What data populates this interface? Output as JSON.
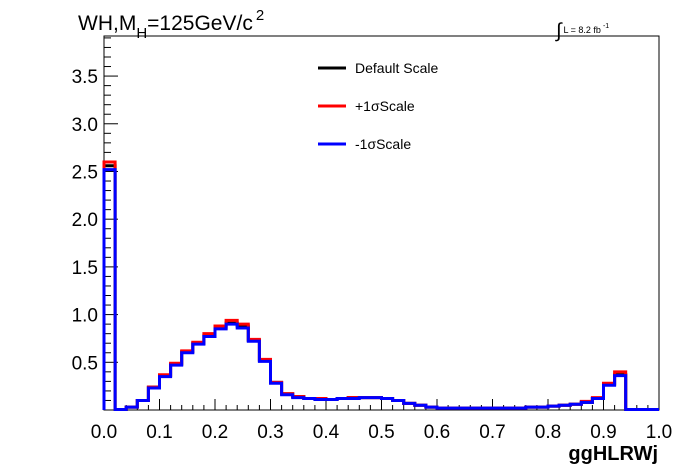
{
  "chart_data": {
    "type": "line",
    "style": "step-histogram",
    "title_main": "WH,M",
    "title_sub": "H",
    "title_rest": "=125GeV/c",
    "title_sup": "2",
    "lumi_prefix": "L = 8.2 fb",
    "lumi_sup": "-1",
    "xlabel": "ggHLRWj",
    "ylabel": "",
    "xlim": [
      0.0,
      1.0
    ],
    "ylim": [
      0.0,
      3.92
    ],
    "xticks": [
      "0.0",
      "0.1",
      "0.2",
      "0.3",
      "0.4",
      "0.5",
      "0.6",
      "0.7",
      "0.8",
      "0.9",
      "1.0"
    ],
    "yticks": [
      "0.5",
      "1.0",
      "1.5",
      "2.0",
      "2.5",
      "3.0",
      "3.5"
    ],
    "grid": false,
    "legend_position": "top-center",
    "bin_edges": [
      0.0,
      0.02,
      0.04,
      0.06,
      0.08,
      0.1,
      0.12,
      0.14,
      0.16,
      0.18,
      0.2,
      0.22,
      0.24,
      0.26,
      0.28,
      0.3,
      0.32,
      0.34,
      0.36,
      0.38,
      0.4,
      0.42,
      0.44,
      0.46,
      0.48,
      0.5,
      0.52,
      0.54,
      0.56,
      0.58,
      0.6,
      0.62,
      0.64,
      0.66,
      0.68,
      0.7,
      0.72,
      0.74,
      0.76,
      0.78,
      0.8,
      0.82,
      0.84,
      0.86,
      0.88,
      0.9,
      0.92,
      0.94,
      0.96,
      0.98,
      1.0
    ],
    "series": [
      {
        "name": "Default Scale",
        "color": "#000000",
        "values": [
          2.56,
          0.0,
          0.03,
          0.1,
          0.24,
          0.36,
          0.48,
          0.61,
          0.7,
          0.78,
          0.86,
          0.91,
          0.88,
          0.73,
          0.52,
          0.29,
          0.17,
          0.14,
          0.12,
          0.12,
          0.11,
          0.12,
          0.13,
          0.13,
          0.13,
          0.12,
          0.1,
          0.07,
          0.05,
          0.03,
          0.02,
          0.02,
          0.02,
          0.02,
          0.02,
          0.02,
          0.02,
          0.02,
          0.03,
          0.03,
          0.04,
          0.05,
          0.06,
          0.08,
          0.12,
          0.27,
          0.37,
          0.0,
          0.0,
          0.0
        ]
      },
      {
        "name": "+1σScale",
        "color": "#ff0000",
        "values": [
          2.6,
          0.0,
          0.03,
          0.1,
          0.24,
          0.37,
          0.49,
          0.62,
          0.71,
          0.8,
          0.88,
          0.94,
          0.9,
          0.74,
          0.53,
          0.29,
          0.17,
          0.14,
          0.12,
          0.12,
          0.11,
          0.12,
          0.13,
          0.13,
          0.13,
          0.12,
          0.1,
          0.07,
          0.05,
          0.03,
          0.02,
          0.02,
          0.02,
          0.02,
          0.02,
          0.02,
          0.02,
          0.02,
          0.03,
          0.03,
          0.04,
          0.05,
          0.06,
          0.09,
          0.13,
          0.28,
          0.4,
          0.0,
          0.0,
          0.0
        ]
      },
      {
        "name": "-1σScale",
        "color": "#0000ff",
        "values": [
          2.52,
          0.0,
          0.03,
          0.1,
          0.23,
          0.35,
          0.47,
          0.6,
          0.69,
          0.77,
          0.85,
          0.9,
          0.86,
          0.72,
          0.51,
          0.28,
          0.16,
          0.13,
          0.12,
          0.11,
          0.11,
          0.12,
          0.12,
          0.13,
          0.13,
          0.12,
          0.1,
          0.07,
          0.05,
          0.03,
          0.02,
          0.02,
          0.02,
          0.02,
          0.02,
          0.02,
          0.02,
          0.02,
          0.03,
          0.03,
          0.04,
          0.05,
          0.06,
          0.08,
          0.12,
          0.26,
          0.36,
          0.0,
          0.0,
          0.0
        ]
      }
    ]
  }
}
